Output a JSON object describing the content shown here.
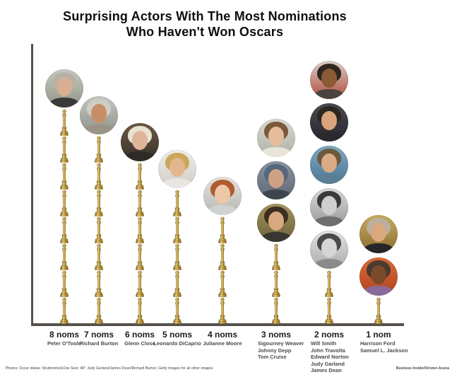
{
  "title": {
    "line1": "Surprising Actors With The Most Nominations",
    "line2": "Who Haven't Won Oscars"
  },
  "footer": {
    "credits": "Photos: Oscar statue: Shutterstock/Joe Seer; AP: Judy Garland/James Dean/Richard Burton; Getty Images for all other images.",
    "watermark": "Business Insider/Kirsten Acuna"
  },
  "colors": {
    "axis": "#56524b",
    "statue_gold_light": "#e9d28c",
    "statue_gold_mid": "#c9a23c",
    "statue_gold_dark": "#7a5e1a",
    "title_text": "#0e0e0e",
    "label_text": "#1c1c1c",
    "name_text": "#4a4a4a"
  },
  "chart_data": {
    "type": "bar",
    "subtype": "pictograph-oscar-statuettes",
    "title": "Surprising Actors With The Most Nominations Who Haven't Won Oscars",
    "categories": [
      "8 noms",
      "7 noms",
      "6 noms",
      "5 noms",
      "4 noms",
      "3 noms",
      "2 noms",
      "1 nom"
    ],
    "values": [
      8,
      7,
      6,
      5,
      4,
      3,
      2,
      1
    ],
    "unit": "Oscar nominations (1 statuette = 1 nomination)",
    "ylim": [
      0,
      8
    ],
    "grid": false,
    "legend": false,
    "actors_per_category": [
      [
        "Peter O'Toole"
      ],
      [
        "Richard Burton"
      ],
      [
        "Glenn Close"
      ],
      [
        "Leonardo DiCaprio"
      ],
      [
        "Julianne Moore"
      ],
      [
        "Sigourney Weaver",
        "Johnny Depp",
        "Tom Cruise"
      ],
      [
        "Will Smith",
        "John Travolta",
        "Edward Norton",
        "Judy Garland",
        "James Dean"
      ],
      [
        "Harrison Ford",
        "Samuel L. Jackson"
      ]
    ]
  },
  "columns": [
    {
      "label": "8 noms",
      "noms": 8,
      "actors": [
        {
          "name": "Peter O'Toole",
          "photo": {
            "bg": "#c7c9bd",
            "bg2": "#8f948a",
            "hair": "#b5b2a6",
            "skin": "#d9af91",
            "top": "#3c3a38"
          }
        }
      ]
    },
    {
      "label": "7 noms",
      "noms": 7,
      "actors": [
        {
          "name": "Richard Burton",
          "photo": {
            "bg": "#c4c8c2",
            "bg2": "#8e9289",
            "hair": "#cfcdc4",
            "skin": "#c98e66",
            "top": "#9a9487"
          }
        }
      ]
    },
    {
      "label": "6 noms",
      "noms": 6,
      "actors": [
        {
          "name": "Glenn Close",
          "photo": {
            "bg": "#6b5a44",
            "bg2": "#39302a",
            "hair": "#e8e2d2",
            "skin": "#e0b49a",
            "top": "#2e2a26"
          }
        }
      ]
    },
    {
      "label": "5 noms",
      "noms": 5,
      "actors": [
        {
          "name": "Leonardo DiCaprio",
          "photo": {
            "bg": "#efeeea",
            "bg2": "#cfcdc6",
            "hair": "#caa75a",
            "skin": "#e3b68f",
            "top": "#e8e6e0"
          }
        }
      ]
    },
    {
      "label": "4 noms",
      "noms": 4,
      "actors": [
        {
          "name": "Julianne Moore",
          "photo": {
            "bg": "#e3e1dd",
            "bg2": "#b9b7b2",
            "hair": "#b05a2f",
            "skin": "#ecc8a8",
            "top": "#cfd3cf"
          }
        }
      ]
    },
    {
      "label": "3 noms",
      "noms": 3,
      "actors": [
        {
          "name": "Sigourney Weaver",
          "photo": {
            "bg": "#d9d8cf",
            "bg2": "#b0b2a6",
            "hair": "#7a5a3c",
            "skin": "#e6bd9c",
            "top": "#e8e4da"
          }
        },
        {
          "name": "Johnny Depp",
          "photo": {
            "bg": "#8b94a0",
            "bg2": "#5d6672",
            "hair": "#54677e",
            "skin": "#cfa184",
            "top": "#3f454e"
          }
        },
        {
          "name": "Tom Cruise",
          "photo": {
            "bg": "#a4945e",
            "bg2": "#6e6138",
            "hair": "#3c2f22",
            "skin": "#d9a87e",
            "top": "#3a3631"
          }
        }
      ]
    },
    {
      "label": "2 noms",
      "noms": 2,
      "actors": [
        {
          "name": "Will Smith",
          "photo": {
            "bg": "#d8cfc6",
            "bg2": "#b04a3a",
            "hair": "#2e2620",
            "skin": "#8a5a34",
            "top": "#4a4440"
          }
        },
        {
          "name": "John Travolta",
          "photo": {
            "bg": "#4a4a50",
            "bg2": "#26262c",
            "hair": "#2c2722",
            "skin": "#d9a47c",
            "top": "#2a2a2e"
          }
        },
        {
          "name": "Edward Norton",
          "photo": {
            "bg": "#7fa8c4",
            "bg2": "#4e7796",
            "hair": "#6b5a3e",
            "skin": "#dcab85",
            "top": "#5b7e95"
          }
        },
        {
          "name": "Judy Garland",
          "photo": {
            "bg": "#d8d8d8",
            "bg2": "#9a9a9a",
            "hair": "#3a3a3a",
            "skin": "#cfcfcf",
            "top": "#6e6e6e"
          }
        },
        {
          "name": "James Dean",
          "photo": {
            "bg": "#e2e2e2",
            "bg2": "#ababab",
            "hair": "#4a4a4a",
            "skin": "#d6d6d6",
            "top": "#8a8a8a"
          }
        }
      ]
    },
    {
      "label": "1 nom",
      "noms": 1,
      "actors": [
        {
          "name": "Harrison Ford",
          "photo": {
            "bg": "#c8a95e",
            "bg2": "#8a6e32",
            "hair": "#b9b0a0",
            "skin": "#d9a87e",
            "top": "#26262a"
          }
        },
        {
          "name": "Samuel L. Jackson",
          "photo": {
            "bg": "#d96a35",
            "bg2": "#b0441f",
            "hair": "#4a3a30",
            "skin": "#7a4a2a",
            "top": "#8a6a9a"
          }
        }
      ]
    }
  ]
}
